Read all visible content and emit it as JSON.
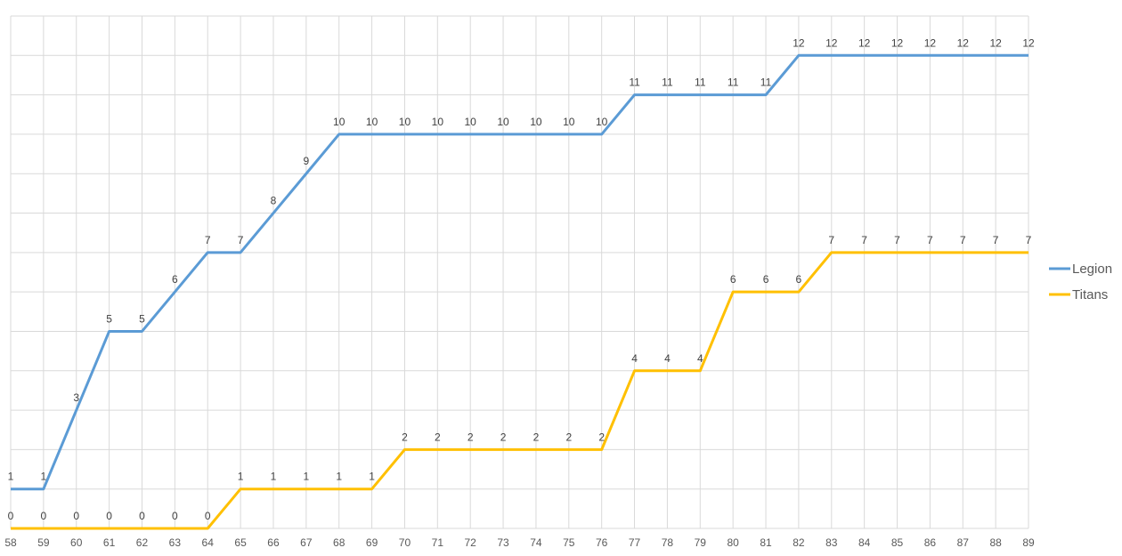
{
  "chart_data": {
    "type": "line",
    "title": "",
    "xlabel": "",
    "ylabel": "",
    "x": [
      58,
      59,
      60,
      61,
      62,
      63,
      64,
      65,
      66,
      67,
      68,
      69,
      70,
      71,
      72,
      73,
      74,
      75,
      76,
      77,
      78,
      79,
      80,
      81,
      82,
      83,
      84,
      85,
      86,
      87,
      88,
      89
    ],
    "ylim": [
      0,
      13
    ],
    "grid": true,
    "legend_position": "right",
    "series": [
      {
        "name": "Legion",
        "color": "#5B9BD5",
        "values": [
          1,
          1,
          3,
          5,
          5,
          6,
          7,
          7,
          8,
          9,
          10,
          10,
          10,
          10,
          10,
          10,
          10,
          10,
          10,
          11,
          11,
          11,
          11,
          11,
          12,
          12,
          12,
          12,
          12,
          12,
          12,
          12
        ]
      },
      {
        "name": "Titans",
        "color": "#FFC000",
        "values": [
          0,
          0,
          0,
          0,
          0,
          0,
          0,
          1,
          1,
          1,
          1,
          1,
          2,
          2,
          2,
          2,
          2,
          2,
          2,
          4,
          4,
          4,
          6,
          6,
          6,
          7,
          7,
          7,
          7,
          7,
          7,
          7
        ]
      }
    ]
  }
}
